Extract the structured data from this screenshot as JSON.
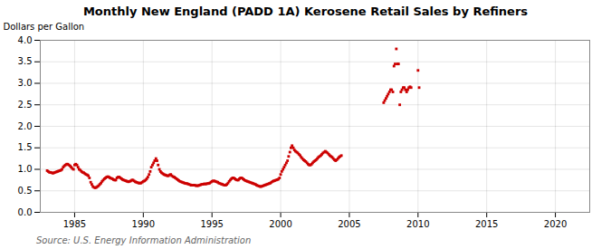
{
  "chart_data": {
    "type": "scatter",
    "title": "Monthly New England (PADD 1A) Kerosene Retail Sales by Refiners",
    "ylabel": "Dollars per Gallon",
    "annotations": [
      "Source: U.S. Energy Information Administration"
    ],
    "color": "#cc0000",
    "marker": "square",
    "grid": true,
    "xlim": [
      1982.5,
      2022.5
    ],
    "xticks": [
      1985,
      1990,
      1995,
      2000,
      2005,
      2010,
      2015,
      2020
    ],
    "ylim": [
      0.0,
      4.0
    ],
    "yticks": [
      {
        "value": 0.0,
        "label": "0.0"
      },
      0.5,
      {
        "value": 1.0,
        "label": "1.0"
      },
      1.5,
      {
        "value": 2.0,
        "label": "2.0"
      },
      2.5,
      {
        "value": 3.0,
        "label": "3.0"
      },
      3.5,
      {
        "value": 4.0,
        "label": "4.0"
      }
    ],
    "x": [
      1983.0,
      1983.08,
      1983.17,
      1983.25,
      1983.33,
      1983.42,
      1983.5,
      1983.58,
      1983.67,
      1983.75,
      1983.83,
      1983.92,
      1984.0,
      1984.08,
      1984.17,
      1984.25,
      1984.33,
      1984.42,
      1984.5,
      1984.58,
      1984.67,
      1984.75,
      1984.83,
      1984.92,
      1985.0,
      1985.08,
      1985.17,
      1985.25,
      1985.33,
      1985.42,
      1985.5,
      1985.58,
      1985.67,
      1985.75,
      1985.83,
      1985.92,
      1986.0,
      1986.08,
      1986.17,
      1986.25,
      1986.33,
      1986.42,
      1986.5,
      1986.58,
      1986.67,
      1986.75,
      1986.83,
      1986.92,
      1987.0,
      1987.08,
      1987.17,
      1987.25,
      1987.33,
      1987.42,
      1987.5,
      1987.58,
      1987.67,
      1987.75,
      1987.83,
      1987.92,
      1988.0,
      1988.08,
      1988.17,
      1988.25,
      1988.33,
      1988.42,
      1988.5,
      1988.58,
      1988.67,
      1988.75,
      1988.83,
      1988.92,
      1989.0,
      1989.08,
      1989.17,
      1989.25,
      1989.33,
      1989.42,
      1989.5,
      1989.58,
      1989.67,
      1989.75,
      1989.83,
      1989.92,
      1990.0,
      1990.08,
      1990.17,
      1990.25,
      1990.33,
      1990.42,
      1990.5,
      1990.58,
      1990.67,
      1990.75,
      1990.83,
      1990.92,
      1991.0,
      1991.08,
      1991.17,
      1991.25,
      1991.33,
      1991.42,
      1991.5,
      1991.58,
      1991.67,
      1991.75,
      1991.83,
      1991.92,
      1992.0,
      1992.08,
      1992.17,
      1992.25,
      1992.33,
      1992.42,
      1992.5,
      1992.58,
      1992.67,
      1992.75,
      1992.83,
      1992.92,
      1993.0,
      1993.08,
      1993.17,
      1993.25,
      1993.33,
      1993.42,
      1993.5,
      1993.58,
      1993.67,
      1993.75,
      1993.83,
      1993.92,
      1994.0,
      1994.08,
      1994.17,
      1994.25,
      1994.33,
      1994.42,
      1994.5,
      1994.58,
      1994.67,
      1994.75,
      1994.83,
      1994.92,
      1995.0,
      1995.08,
      1995.17,
      1995.25,
      1995.33,
      1995.42,
      1995.5,
      1995.58,
      1995.67,
      1995.75,
      1995.83,
      1995.92,
      1996.0,
      1996.08,
      1996.17,
      1996.25,
      1996.33,
      1996.42,
      1996.5,
      1996.58,
      1996.67,
      1996.75,
      1996.83,
      1996.92,
      1997.0,
      1997.08,
      1997.17,
      1997.25,
      1997.33,
      1997.42,
      1997.5,
      1997.58,
      1997.67,
      1997.75,
      1997.83,
      1997.92,
      1998.0,
      1998.08,
      1998.17,
      1998.25,
      1998.33,
      1998.42,
      1998.5,
      1998.58,
      1998.67,
      1998.75,
      1998.83,
      1998.92,
      1999.0,
      1999.08,
      1999.17,
      1999.25,
      1999.33,
      1999.42,
      1999.5,
      1999.58,
      1999.67,
      1999.75,
      1999.83,
      1999.92,
      2000.0,
      2000.08,
      2000.17,
      2000.25,
      2000.33,
      2000.42,
      2000.5,
      2000.58,
      2000.67,
      2000.75,
      2000.83,
      2000.92,
      2001.0,
      2001.08,
      2001.17,
      2001.25,
      2001.33,
      2001.42,
      2001.5,
      2001.58,
      2001.67,
      2001.75,
      2001.83,
      2001.92,
      2002.0,
      2002.08,
      2002.17,
      2002.25,
      2002.33,
      2002.42,
      2002.5,
      2002.58,
      2002.67,
      2002.75,
      2002.83,
      2002.92,
      2003.0,
      2003.08,
      2003.17,
      2003.25,
      2003.33,
      2003.42,
      2003.5,
      2003.58,
      2003.67,
      2003.75,
      2003.83,
      2003.92,
      2004.0,
      2004.08,
      2004.17,
      2004.25,
      2004.33,
      2004.42,
      2007.5,
      2007.58,
      2007.67,
      2007.75,
      2007.83,
      2007.92,
      2008.0,
      2008.08,
      2008.17,
      2008.25,
      2008.33,
      2008.42,
      2008.5,
      2008.58,
      2008.67,
      2008.75,
      2008.83,
      2008.92,
      2009.0,
      2009.08,
      2009.17,
      2009.25,
      2009.33,
      2009.42,
      2009.5,
      2010.0,
      2010.08
    ],
    "values": [
      0.97,
      0.95,
      0.93,
      0.93,
      0.92,
      0.91,
      0.92,
      0.93,
      0.94,
      0.95,
      0.96,
      0.97,
      0.98,
      1.0,
      1.05,
      1.08,
      1.1,
      1.12,
      1.12,
      1.1,
      1.08,
      1.05,
      1.02,
      1.0,
      1.1,
      1.12,
      1.1,
      1.05,
      1.0,
      0.98,
      0.95,
      0.93,
      0.92,
      0.9,
      0.88,
      0.87,
      0.85,
      0.8,
      0.7,
      0.65,
      0.6,
      0.58,
      0.57,
      0.58,
      0.6,
      0.62,
      0.65,
      0.68,
      0.72,
      0.75,
      0.78,
      0.8,
      0.82,
      0.83,
      0.82,
      0.8,
      0.79,
      0.78,
      0.76,
      0.75,
      0.75,
      0.8,
      0.82,
      0.82,
      0.8,
      0.78,
      0.76,
      0.75,
      0.74,
      0.73,
      0.72,
      0.71,
      0.72,
      0.73,
      0.75,
      0.75,
      0.73,
      0.71,
      0.7,
      0.69,
      0.68,
      0.68,
      0.68,
      0.7,
      0.72,
      0.73,
      0.75,
      0.78,
      0.82,
      0.88,
      0.95,
      1.05,
      1.1,
      1.15,
      1.2,
      1.25,
      1.2,
      1.1,
      1.0,
      0.95,
      0.92,
      0.9,
      0.88,
      0.87,
      0.86,
      0.85,
      0.85,
      0.87,
      0.88,
      0.85,
      0.83,
      0.82,
      0.8,
      0.78,
      0.76,
      0.74,
      0.72,
      0.71,
      0.7,
      0.69,
      0.68,
      0.67,
      0.67,
      0.66,
      0.65,
      0.64,
      0.63,
      0.63,
      0.63,
      0.63,
      0.62,
      0.62,
      0.62,
      0.63,
      0.64,
      0.65,
      0.65,
      0.66,
      0.66,
      0.66,
      0.67,
      0.67,
      0.68,
      0.7,
      0.72,
      0.73,
      0.73,
      0.72,
      0.71,
      0.7,
      0.68,
      0.67,
      0.66,
      0.65,
      0.64,
      0.63,
      0.63,
      0.65,
      0.68,
      0.72,
      0.75,
      0.78,
      0.8,
      0.8,
      0.78,
      0.76,
      0.75,
      0.75,
      0.78,
      0.8,
      0.8,
      0.78,
      0.76,
      0.74,
      0.73,
      0.72,
      0.71,
      0.7,
      0.69,
      0.68,
      0.67,
      0.66,
      0.65,
      0.63,
      0.62,
      0.61,
      0.6,
      0.6,
      0.61,
      0.62,
      0.63,
      0.64,
      0.65,
      0.66,
      0.67,
      0.68,
      0.7,
      0.72,
      0.73,
      0.74,
      0.75,
      0.76,
      0.77,
      0.8,
      0.88,
      0.95,
      1.0,
      1.05,
      1.1,
      1.15,
      1.2,
      1.3,
      1.4,
      1.5,
      1.55,
      1.5,
      1.45,
      1.42,
      1.4,
      1.38,
      1.35,
      1.32,
      1.28,
      1.25,
      1.22,
      1.2,
      1.18,
      1.15,
      1.12,
      1.1,
      1.1,
      1.12,
      1.15,
      1.18,
      1.2,
      1.22,
      1.25,
      1.28,
      1.3,
      1.32,
      1.35,
      1.38,
      1.4,
      1.42,
      1.4,
      1.38,
      1.35,
      1.32,
      1.3,
      1.28,
      1.25,
      1.22,
      1.2,
      1.22,
      1.25,
      1.28,
      1.3,
      1.32,
      2.55,
      2.6,
      2.65,
      2.7,
      2.75,
      2.8,
      2.85,
      2.85,
      2.8,
      3.4,
      3.45,
      3.8,
      3.45,
      3.45,
      2.5,
      2.8,
      2.85,
      2.9,
      2.9,
      2.85,
      2.8,
      2.85,
      2.9,
      2.92,
      2.9,
      3.3,
      2.9
    ]
  }
}
